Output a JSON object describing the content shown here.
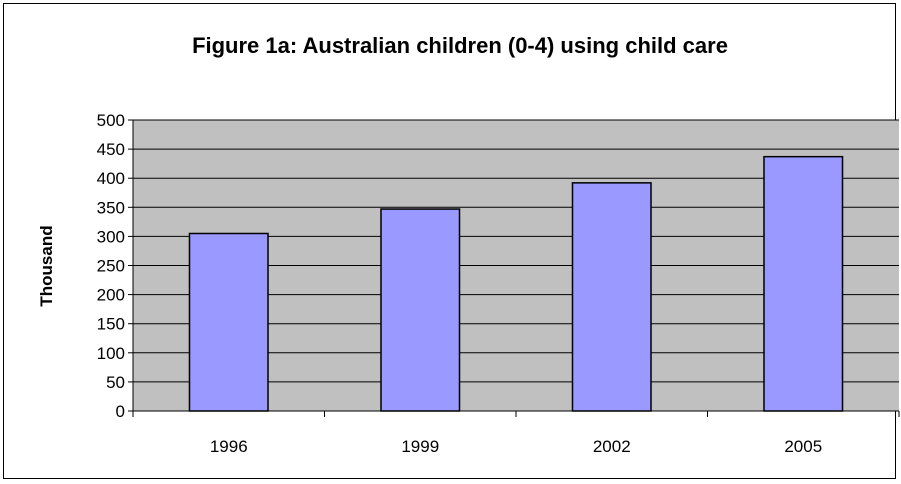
{
  "chart_data": {
    "type": "bar",
    "title": "Figure 1a: Australian children (0-4) using child care",
    "xlabel": "",
    "ylabel": "Thousand",
    "categories": [
      "1996",
      "1999",
      "2002",
      "2005"
    ],
    "values": [
      305,
      347,
      392,
      437
    ],
    "ylim": [
      0,
      500
    ],
    "yticks": [
      0,
      50,
      100,
      150,
      200,
      250,
      300,
      350,
      400,
      450,
      500
    ],
    "grid": true,
    "legend": "none",
    "colors": {
      "bar_fill": "#9999ff",
      "bar_stroke": "#000000",
      "plot_background": "#c0c0c0",
      "gridline": "#000000"
    }
  }
}
